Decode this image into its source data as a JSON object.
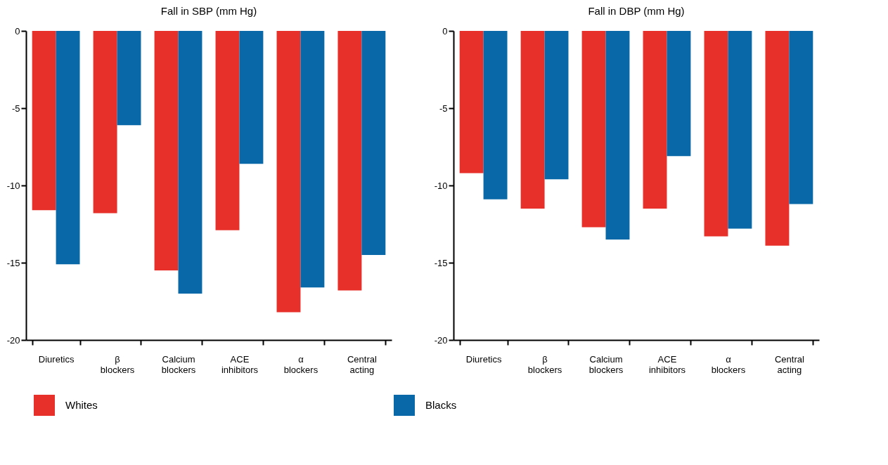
{
  "chart_data": [
    {
      "type": "bar",
      "title": "Fall in SBP (mm Hg)",
      "categories": [
        "Diuretics",
        "β\nblockers",
        "Calcium\nblockers",
        "ACE\ninhibitors",
        "α\nblockers",
        "Central\nacting"
      ],
      "series": [
        {
          "name": "Whites",
          "color": "#e8302a",
          "values": [
            -11.6,
            -11.8,
            -15.5,
            -12.9,
            -18.2,
            -16.8
          ]
        },
        {
          "name": "Blacks",
          "color": "#0868a8",
          "values": [
            -15.1,
            -6.1,
            -17.0,
            -8.6,
            -16.6,
            -14.5
          ]
        }
      ],
      "ylim": [
        -20,
        0
      ],
      "yticks": [
        -20,
        -15,
        -10,
        -5,
        0
      ],
      "legend": "bottom"
    },
    {
      "type": "bar",
      "title": "Fall in DBP (mm Hg)",
      "categories": [
        "Diuretics",
        "β\nblockers",
        "Calcium\nblockers",
        "ACE\ninhibitors",
        "α\nblockers",
        "Central\nacting"
      ],
      "series": [
        {
          "name": "Whites",
          "color": "#e8302a",
          "values": [
            -9.2,
            -11.5,
            -12.7,
            -11.5,
            -13.3,
            -13.9
          ]
        },
        {
          "name": "Blacks",
          "color": "#0868a8",
          "values": [
            -10.9,
            -9.6,
            -13.5,
            -8.1,
            -12.8,
            -11.2
          ]
        }
      ],
      "ylim": [
        -20,
        0
      ],
      "yticks": [
        -20,
        -15,
        -10,
        -5,
        0
      ],
      "legend": "bottom"
    }
  ]
}
